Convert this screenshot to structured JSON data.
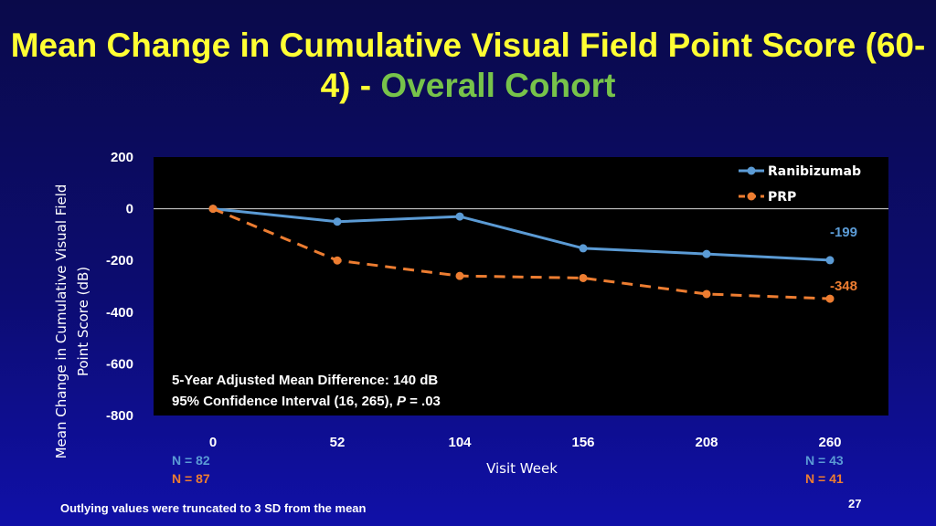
{
  "title": {
    "main": "Mean Change in Cumulative Visual Field Point Score (60-4)",
    "separator": " - ",
    "sub": "Overall Cohort"
  },
  "colors": {
    "title": "#ffff33",
    "subtitle": "#77c34a",
    "ranibizumab": "#5b9bd5",
    "prp": "#ed7d31",
    "plot_background": "#000000",
    "slide_background": "#0c0c70"
  },
  "chart_data": {
    "type": "line",
    "x": [
      0,
      52,
      104,
      156,
      208,
      260
    ],
    "xlabel": "Visit Week",
    "ylabel": "Mean Change in Cumulative Visual Field Point Score (dB)",
    "xticks": [
      "0",
      "52",
      "104",
      "156",
      "208",
      "260"
    ],
    "yticks": [
      "200",
      "0",
      "-200",
      "-400",
      "-600",
      "-800"
    ],
    "ylim": [
      -800,
      200
    ],
    "grid": false,
    "legend_position": "top-right",
    "series": [
      {
        "name": "Ranibizumab",
        "values": [
          0,
          -50,
          -30,
          -153,
          -175,
          -199
        ],
        "style": "solid",
        "color": "#5b9bd5",
        "end_label": "-199"
      },
      {
        "name": "PRP",
        "values": [
          0,
          -200,
          -260,
          -268,
          -330,
          -348
        ],
        "style": "dashed",
        "color": "#ed7d31",
        "end_label": "-348"
      }
    ],
    "annotation": {
      "line1": "5-Year Adjusted Mean Difference: 140 dB",
      "line2_prefix": "95% Confidence Interval (16, 265), ",
      "line2_p": "P",
      "line2_suffix": " = .03"
    },
    "n_counts": {
      "week_0": {
        "ranibizumab": "N = 82",
        "prp": "N = 87"
      },
      "week_260": {
        "ranibizumab": "N = 43",
        "prp": "N = 41"
      }
    }
  },
  "footnote": "Outlying values were truncated to 3 SD from the mean",
  "slide_number": "27"
}
